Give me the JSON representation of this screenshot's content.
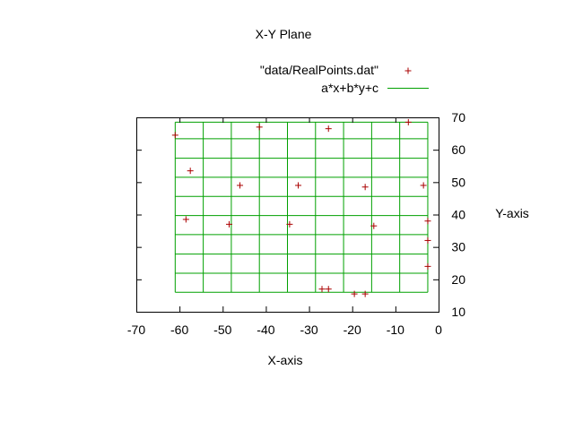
{
  "chart_data": {
    "type": "scatter",
    "title": "X-Y Plane",
    "xlabel": "X-axis",
    "ylabel": "Y-axis",
    "xlim": [
      -70,
      0
    ],
    "ylim": [
      10,
      70
    ],
    "x_ticks": [
      -70,
      -60,
      -50,
      -40,
      -30,
      -20,
      -10,
      0
    ],
    "y_ticks": [
      10,
      20,
      30,
      40,
      50,
      60,
      70
    ],
    "y_ticks_side": "right",
    "grid": false,
    "legend_position": "top-right",
    "series": [
      {
        "name": "\"data/RealPoints.dat\"",
        "kind": "points",
        "marker": "plus",
        "color": "#aa0000",
        "points": [
          {
            "x": -61.0,
            "y": 64.5
          },
          {
            "x": -41.5,
            "y": 67.0
          },
          {
            "x": -25.5,
            "y": 66.5
          },
          {
            "x": -7.0,
            "y": 68.5
          },
          {
            "x": -57.5,
            "y": 53.5
          },
          {
            "x": -46.0,
            "y": 49.0
          },
          {
            "x": -32.5,
            "y": 49.0
          },
          {
            "x": -17.0,
            "y": 48.5
          },
          {
            "x": -3.5,
            "y": 49.0
          },
          {
            "x": -58.5,
            "y": 38.5
          },
          {
            "x": -48.5,
            "y": 37.0
          },
          {
            "x": -34.5,
            "y": 37.0
          },
          {
            "x": -15.0,
            "y": 36.5
          },
          {
            "x": -2.5,
            "y": 38.0
          },
          {
            "x": -2.5,
            "y": 32.0
          },
          {
            "x": -2.5,
            "y": 24.0
          },
          {
            "x": -27.0,
            "y": 17.0
          },
          {
            "x": -25.5,
            "y": 17.0
          },
          {
            "x": -19.5,
            "y": 15.5
          },
          {
            "x": -17.0,
            "y": 15.5
          }
        ]
      },
      {
        "name": "a*x+b*y+c",
        "kind": "surface-grid",
        "color": "#00a000",
        "x_grid": [
          -61.0,
          -54.5,
          -48.0,
          -41.5,
          -35.0,
          -28.5,
          -22.0,
          -15.5,
          -9.0,
          -2.5
        ],
        "y_grid": [
          16.0,
          21.9,
          27.8,
          33.8,
          39.7,
          45.6,
          51.5,
          57.4,
          63.4,
          68.5
        ]
      }
    ]
  }
}
